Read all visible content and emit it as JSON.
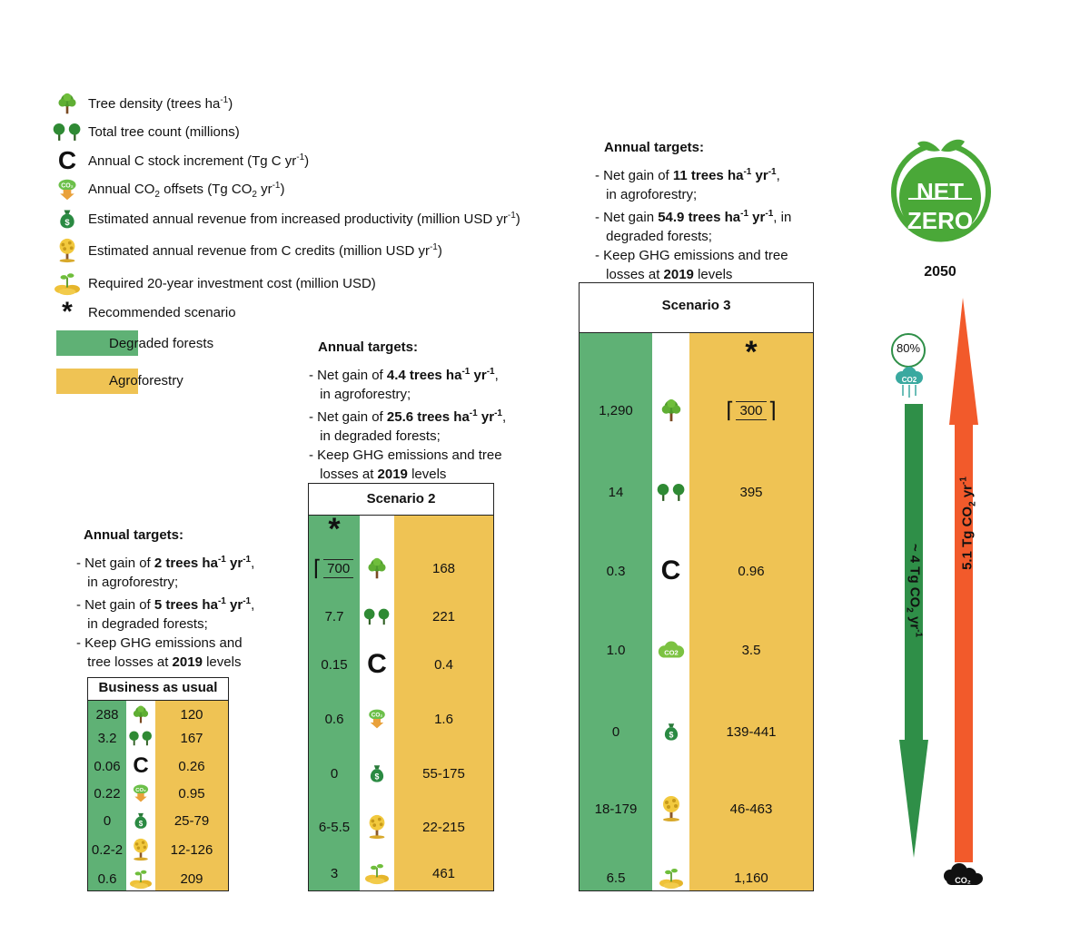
{
  "legend": {
    "items": [
      {
        "icon": "tree-icon",
        "label": "Tree density (trees ha",
        "sup": "-1",
        "tail": ")"
      },
      {
        "icon": "trees-icon",
        "label": "Total tree count (millions)",
        "sup": "",
        "tail": ""
      },
      {
        "icon": "carbon-c-icon",
        "label": "Annual C stock increment (Tg C yr",
        "sup": "-1",
        "tail": ")"
      },
      {
        "icon": "co2-offset-icon",
        "label": "Annual CO",
        "sub": "2",
        "mid": " offsets (Tg CO",
        "sub2": "2",
        "tail2": " yr",
        "sup": "-1",
        "tail": ")"
      },
      {
        "icon": "money-bag-icon",
        "label": "Estimated annual revenue from increased productivity (million USD yr",
        "sup": "-1",
        "tail": ")"
      },
      {
        "icon": "money-tree-icon",
        "label": "Estimated annual revenue from C credits (million USD yr",
        "sup": "-1",
        "tail": ")"
      },
      {
        "icon": "investment-icon",
        "label": "Required 20-year investment cost (million USD)",
        "sup": "",
        "tail": ""
      },
      {
        "icon": "asterisk-icon",
        "label": "Recommended scenario",
        "sup": "",
        "tail": ""
      }
    ],
    "degraded_label": "Degraded forests",
    "agro_label": "Agroforestry"
  },
  "colors": {
    "degraded": "#5fb175",
    "agroforestry": "#efc354",
    "red_arrow": "#f25a2b",
    "green_arrow": "#2f8f48"
  },
  "bau": {
    "targets_title": "Annual targets:",
    "title": "Business as usual",
    "rows": [
      {
        "left": "288",
        "right": "120"
      },
      {
        "left": "3.2",
        "right": "167"
      },
      {
        "left": "0.06",
        "right": "0.26"
      },
      {
        "left": "0.22",
        "right": "0.95"
      },
      {
        "left": "0",
        "right": "25-79"
      },
      {
        "left": "0.2-2",
        "right": "12-126"
      },
      {
        "left": "0.6",
        "right": "209"
      }
    ]
  },
  "s2": {
    "targets_title": "Annual targets:",
    "title": "Scenario 2",
    "star": "*",
    "boxed_value": "700",
    "rows": [
      {
        "left": "",
        "right": "168"
      },
      {
        "left": "7.7",
        "right": "221"
      },
      {
        "left": "0.15",
        "right": "0.4"
      },
      {
        "left": "0.6",
        "right": "1.6"
      },
      {
        "left": "0",
        "right": "55-175"
      },
      {
        "left": "6-5.5",
        "right": "22-215"
      },
      {
        "left": "3",
        "right": "461"
      }
    ]
  },
  "s3": {
    "targets_title": "Annual targets:",
    "title": "Scenario 3",
    "star": "*",
    "boxed_value": "300",
    "rows": [
      {
        "left": "1,290",
        "right": ""
      },
      {
        "left": "14",
        "right": "395"
      },
      {
        "left": "0.3",
        "right": "0.96"
      },
      {
        "left": "1.0",
        "right": "3.5"
      },
      {
        "left": "0",
        "right": "139-441"
      },
      {
        "left": "18-179",
        "right": "46-463"
      },
      {
        "left": "6.5",
        "right": "1,160"
      }
    ]
  },
  "net_zero": {
    "line1": "NET",
    "line2": "ZERO",
    "year": "2050",
    "percent": "80%"
  },
  "arrows": {
    "green_label": "~ 4 Tg CO",
    "red_label": "5.1 Tg CO",
    "label_tail": " yr",
    "sub": "2",
    "sup": "-1"
  }
}
